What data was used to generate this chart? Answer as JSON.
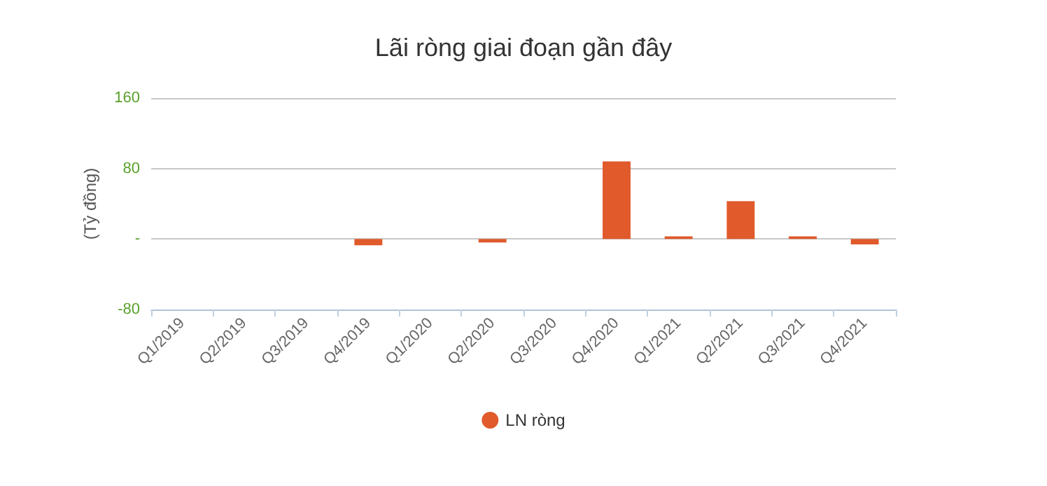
{
  "chart_data": {
    "type": "bar",
    "title": "Lãi ròng giai đoạn gần đây",
    "ylabel": "(Tỷ đồng)",
    "categories": [
      "Q1/2019",
      "Q2/2019",
      "Q3/2019",
      "Q4/2019",
      "Q1/2020",
      "Q2/2020",
      "Q3/2020",
      "Q4/2020",
      "Q1/2021",
      "Q2/2021",
      "Q3/2021",
      "Q4/2021"
    ],
    "series": [
      {
        "name": "LN ròng",
        "color": "#e05a2b",
        "values": [
          0,
          0,
          0,
          -7,
          0,
          -4,
          0,
          88,
          3,
          43,
          3,
          -6
        ]
      }
    ],
    "ylim": [
      -80,
      160
    ],
    "yticks": [
      -80,
      {
        "value": 0,
        "label": "-"
      },
      80,
      160
    ],
    "grid": "y",
    "legend": "bottom"
  }
}
